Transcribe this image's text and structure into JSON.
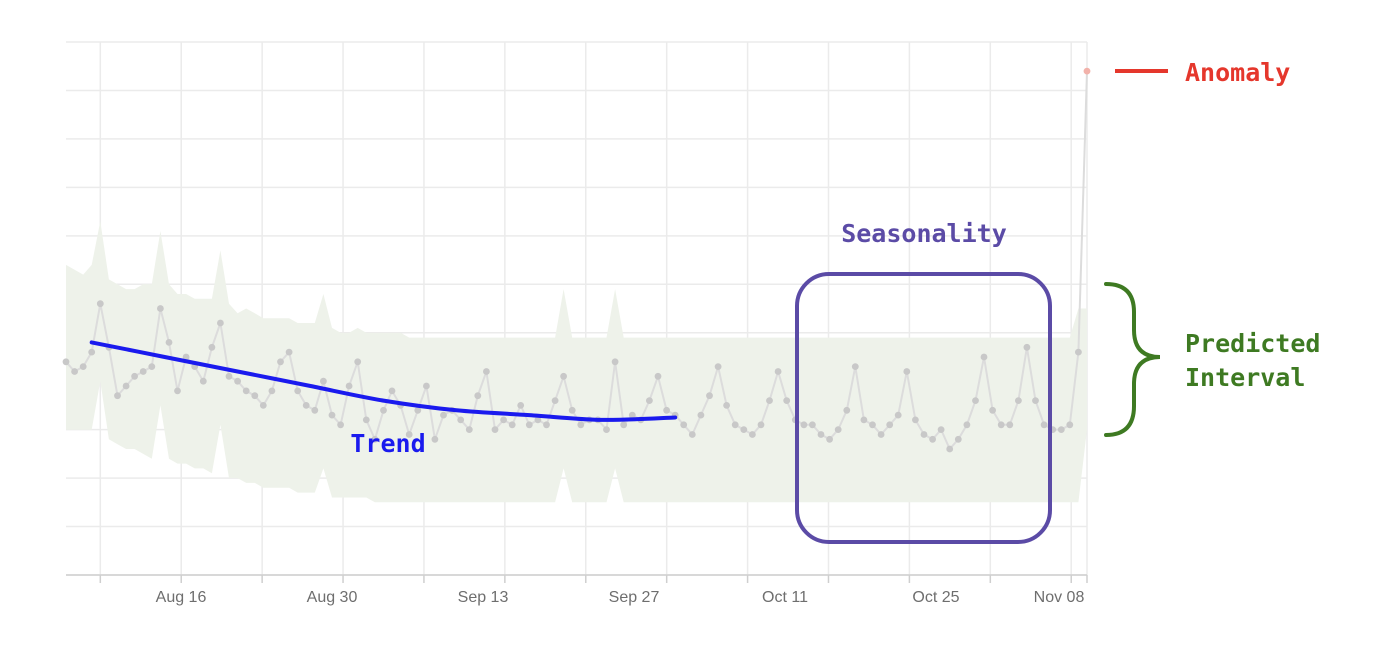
{
  "chart_data": {
    "type": "line",
    "title": "",
    "xlabel": "",
    "ylabel": "",
    "x_tick_labels": [
      "Aug 16",
      "Aug 30",
      "Sep 13",
      "Sep 27",
      "Oct 11",
      "Oct 25",
      "Nov 08"
    ],
    "grid": true,
    "series": [
      {
        "role": "observed",
        "values": [
          44,
          42,
          43,
          46,
          56,
          47,
          37,
          39,
          41,
          42,
          43,
          55,
          48,
          38,
          45,
          43,
          40,
          47,
          52,
          41,
          40,
          38,
          37,
          35,
          38,
          44,
          46,
          38,
          35,
          34,
          40,
          33,
          31,
          39,
          44,
          32,
          28,
          34,
          38,
          35,
          29,
          34,
          39,
          28,
          33,
          34,
          32,
          30,
          37,
          42,
          30,
          32,
          31,
          35,
          31,
          32,
          31,
          36,
          41,
          34,
          31,
          32,
          32,
          30,
          44,
          31,
          33,
          32,
          36,
          41,
          34,
          33,
          31,
          29,
          33,
          37,
          43,
          35,
          31,
          30,
          29,
          31,
          36,
          42,
          36,
          32,
          31,
          31,
          29,
          28,
          30,
          34,
          43,
          32,
          31,
          29,
          31,
          33,
          42,
          32,
          29,
          28,
          30,
          26,
          28,
          31,
          36,
          45,
          34,
          31,
          31,
          36,
          47,
          36,
          31,
          30,
          30,
          31,
          46,
          104
        ]
      }
    ],
    "interval_upper": [
      64,
      63,
      62,
      64,
      73,
      61,
      60,
      59,
      59,
      60,
      60,
      71,
      60,
      58,
      58,
      57,
      57,
      57,
      67,
      56,
      54,
      55,
      54,
      53,
      53,
      53,
      53,
      52,
      52,
      52,
      58,
      51,
      50,
      50,
      51,
      50,
      50,
      50,
      50,
      50,
      49,
      49,
      49,
      49,
      49,
      49,
      49,
      49,
      49,
      49,
      49,
      49,
      49,
      49,
      49,
      49,
      49,
      49,
      59,
      49,
      49,
      49,
      49,
      49,
      59,
      49,
      49,
      49,
      49,
      49,
      49,
      49,
      49,
      49,
      49,
      49,
      49,
      49,
      49,
      49,
      49,
      49,
      49,
      49,
      49,
      49,
      49,
      49,
      49,
      49,
      49,
      49,
      49,
      49,
      49,
      49,
      49,
      49,
      49,
      49,
      49,
      49,
      49,
      49,
      49,
      49,
      49,
      49,
      49,
      49,
      49,
      49,
      49,
      49,
      49,
      49,
      49,
      49,
      55,
      55
    ],
    "interval_lower": [
      30,
      30,
      30,
      30,
      40,
      28,
      27,
      26,
      26,
      25,
      24,
      35,
      24,
      23,
      23,
      22,
      22,
      21,
      31,
      20,
      20,
      19,
      19,
      18,
      18,
      18,
      18,
      17,
      17,
      17,
      22,
      16,
      16,
      16,
      16,
      16,
      15,
      15,
      15,
      15,
      15,
      15,
      15,
      15,
      15,
      15,
      15,
      15,
      15,
      15,
      15,
      15,
      15,
      15,
      15,
      15,
      15,
      15,
      22,
      15,
      15,
      15,
      15,
      15,
      22,
      15,
      15,
      15,
      15,
      15,
      15,
      15,
      15,
      15,
      15,
      15,
      15,
      15,
      15,
      15,
      15,
      15,
      15,
      15,
      15,
      15,
      15,
      15,
      15,
      15,
      15,
      15,
      15,
      15,
      15,
      15,
      15,
      15,
      15,
      15,
      15,
      15,
      15,
      15,
      15,
      15,
      15,
      15,
      15,
      15,
      15,
      15,
      15,
      15,
      15,
      15,
      15,
      15,
      15,
      30
    ],
    "trend": {
      "label": "Trend",
      "values": [
        48,
        45,
        42,
        39,
        36,
        34,
        33,
        32,
        32.5
      ]
    },
    "seasonality_label": "Seasonality",
    "interval_label": "Predicted\nInterval",
    "anomaly_label": "Anomaly",
    "colors": {
      "observed": "#c8c8c8",
      "interval_fill": "#eef2ea",
      "trend": "#1a1aee",
      "seasonality": "#5b4ba6",
      "interval_bracket": "#3e7a22",
      "anomaly": "#e5372c",
      "anomaly_point": "#f2b2aa"
    }
  }
}
